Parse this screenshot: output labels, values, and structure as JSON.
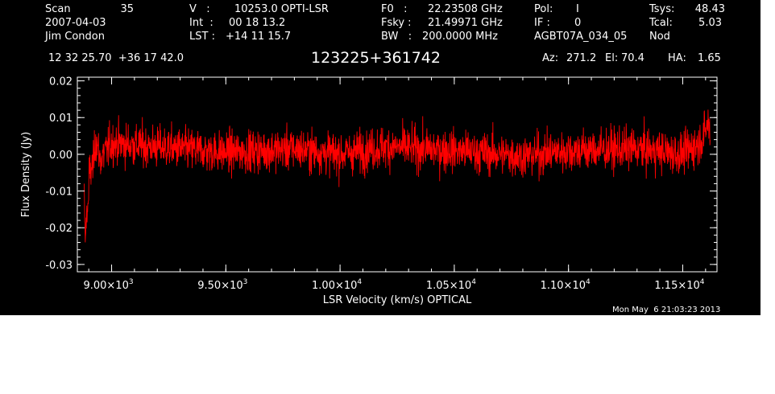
{
  "header": {
    "scan_label": "Scan",
    "scan_value": "35",
    "date": "2007-04-03",
    "observer": "Jim Condon",
    "v_label": "V   :",
    "v_value": "10253.0 OPTI-LSR",
    "int_label": "Int  :",
    "int_value": "00 18 13.2",
    "lst_label": "LST :",
    "lst_value": "+14 11 15.7",
    "f0_label": "F0   :",
    "f0_value": "22.23508 GHz",
    "fsky_label": "Fsky :",
    "fsky_value": "21.49971 GHz",
    "bw_label": "BW   :",
    "bw_value": "200.0000 MHz",
    "pol_label": "Pol:",
    "pol_value": "I",
    "if_label": "IF :",
    "if_value": "0",
    "project": "AGBT07A_034_05",
    "tsys_label": "Tsys:",
    "tsys_value": "48.43",
    "tcal_label": "Tcal:",
    "tcal_value": "5.03",
    "mode": "Nod",
    "coords": "12 32 25.70  +36 17 42.0",
    "source": "123225+361742",
    "az_label": "Az:",
    "az_value": "271.2",
    "el_label": "El:",
    "el_value": "70.4",
    "ha_label": "HA:",
    "ha_value": "1.65"
  },
  "timestamp": "Mon May  6 21:03:23 2013",
  "colors": {
    "background": "#000000",
    "foreground": "#ffffff",
    "spectrum": "#ff0000",
    "page": "#ffffff"
  },
  "chart_data": {
    "type": "line",
    "title": "123225+361742",
    "xlabel": "LSR Velocity (km/s) OPTICAL",
    "ylabel": "Flux Density (Jy)",
    "xlim": [
      8850,
      11650
    ],
    "ylim": [
      -0.032,
      0.021
    ],
    "xticks": [
      {
        "value": 9000,
        "mant": "9.00×10",
        "exp": "3"
      },
      {
        "value": 9500,
        "mant": "9.50×10",
        "exp": "3"
      },
      {
        "value": 10000,
        "mant": "1.00×10",
        "exp": "4"
      },
      {
        "value": 10500,
        "mant": "1.05×10",
        "exp": "4"
      },
      {
        "value": 11000,
        "mant": "1.10×10",
        "exp": "4"
      },
      {
        "value": 11500,
        "mant": "1.15×10",
        "exp": "4"
      }
    ],
    "yticks": [
      {
        "value": 0.02,
        "label": "0.02"
      },
      {
        "value": 0.01,
        "label": "0.01"
      },
      {
        "value": 0.0,
        "label": "0.00"
      },
      {
        "value": -0.01,
        "label": "-0.01"
      },
      {
        "value": -0.02,
        "label": "-0.02"
      },
      {
        "value": -0.03,
        "label": "-0.03"
      }
    ],
    "series": [
      {
        "x_start": 8880,
        "x_end": 11620,
        "baseline": 0.0,
        "noise_rms": 0.004,
        "min_value": -0.024,
        "max_value": 0.018,
        "points": [
          [
            8880,
            -0.01
          ],
          [
            8885,
            -0.024
          ],
          [
            8890,
            -0.018
          ],
          [
            8900,
            -0.012
          ],
          [
            8910,
            -0.008
          ],
          [
            8920,
            -0.006
          ],
          [
            8930,
            0.009
          ],
          [
            8950,
            -0.003
          ],
          [
            9000,
            0.006
          ],
          [
            9200,
            0.004
          ],
          [
            9500,
            0.001
          ],
          [
            9800,
            0.003
          ],
          [
            10000,
            0.0
          ],
          [
            10200,
            0.004
          ],
          [
            10500,
            0.002
          ],
          [
            10800,
            -0.001
          ],
          [
            11000,
            0.002
          ],
          [
            11300,
            0.003
          ],
          [
            11500,
            0.0
          ],
          [
            11570,
            0.006
          ],
          [
            11600,
            0.012
          ],
          [
            11610,
            0.018
          ],
          [
            11620,
            0.01
          ]
        ]
      }
    ],
    "grid": false,
    "legend": "none"
  }
}
